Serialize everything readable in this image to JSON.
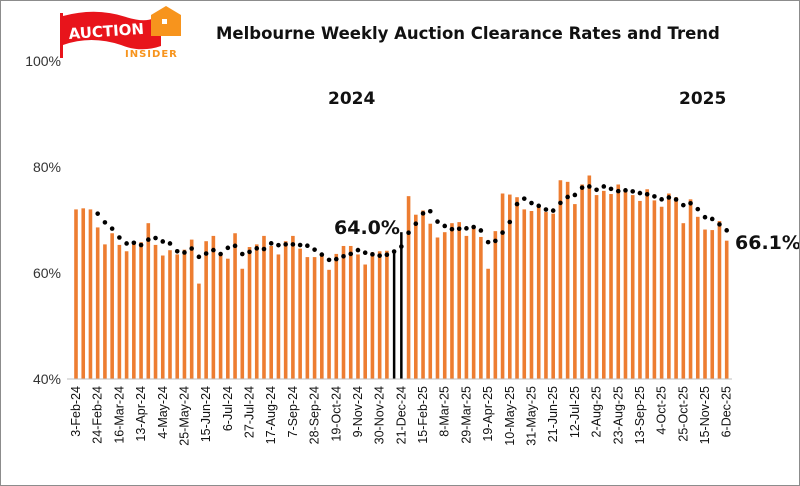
{
  "logo": {
    "line1": "AUCTION",
    "line2": "INSIDER",
    "colors": {
      "flag": "#e8141b",
      "house": "#f7941d"
    }
  },
  "chart_data": {
    "type": "bar",
    "title": "Melbourne Weekly Auction Clearance Rates and Trend",
    "ylim": [
      40,
      100
    ],
    "y_ticks": [
      "40%",
      "60%",
      "80%",
      "100%"
    ],
    "y_tick_values": [
      40,
      60,
      80,
      100
    ],
    "grid": false,
    "legend": "none",
    "x_tick_labels": [
      "3-Feb-24",
      "24-Feb-24",
      "16-Mar-24",
      "13-Apr-24",
      "4-May-24",
      "25-May-24",
      "15-Jun-24",
      "6-Jul-24",
      "27-Jul-24",
      "17-Aug-24",
      "7-Sep-24",
      "28-Sep-24",
      "19-Oct-24",
      "9-Nov-24",
      "30-Nov-24",
      "21-Dec-24",
      "15-Feb-25",
      "8-Mar-25",
      "29-Mar-25",
      "19-Apr-25",
      "10-May-25",
      "31-May-25",
      "21-Jun-25",
      "12-Jul-25",
      "2-Aug-25",
      "23-Aug-25",
      "13-Sep-25",
      "4-Oct-25",
      "25-Oct-25",
      "15-Nov-25",
      "6-Dec-25"
    ],
    "tick_every_n_bars": 3,
    "values": [
      72.0,
      72.2,
      72.0,
      68.6,
      65.4,
      67.5,
      65.3,
      64.1,
      65.9,
      65.8,
      69.4,
      65.3,
      63.3,
      64.3,
      63.5,
      64.4,
      66.3,
      58.0,
      66.0,
      67.0,
      63.3,
      62.7,
      67.5,
      60.8,
      64.9,
      65.4,
      67.0,
      65.1,
      63.5,
      66.0,
      67.0,
      64.6,
      63.0,
      63.0,
      63.3,
      60.6,
      63.6,
      65.1,
      65.1,
      63.5,
      61.6,
      63.9,
      64.1,
      64.2,
      64.0,
      67.7,
      74.5,
      71.0,
      71.8,
      69.3,
      66.7,
      67.7,
      69.4,
      69.6,
      67.0,
      68.7,
      66.8,
      60.8,
      67.9,
      75.0,
      74.8,
      74.3,
      72.0,
      71.7,
      72.7,
      71.5,
      71.2,
      77.5,
      77.2,
      73.0,
      76.7,
      78.4,
      74.7,
      75.5,
      74.9,
      76.7,
      75.3,
      74.7,
      73.6,
      75.8,
      73.7,
      72.5,
      75.0,
      74.3,
      69.4,
      73.9,
      70.6,
      68.2,
      68.1,
      69.8,
      66.1
    ],
    "black_bars": [
      45,
      46
    ],
    "bar_color": "#ed7d31",
    "highlight_color": "#000000",
    "trend": {
      "style": "dotted",
      "color": "#000000"
    },
    "year_labels": [
      "2024",
      "2025"
    ],
    "annotations": [
      "64.0%",
      "66.1%"
    ]
  }
}
